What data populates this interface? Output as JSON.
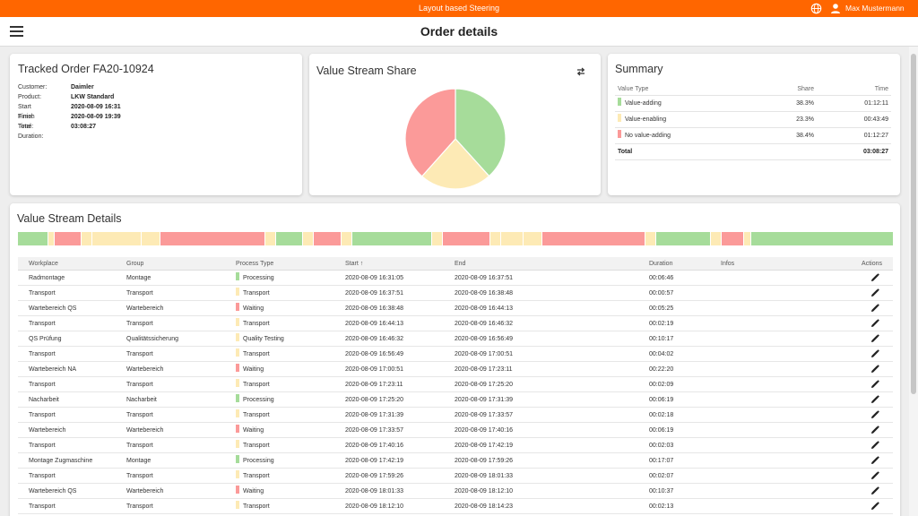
{
  "topbar": {
    "title": "Layout based Steering",
    "user_name": "Max Mustermann",
    "icons": [
      "globe-icon",
      "user-icon"
    ]
  },
  "header": {
    "title": "Order details",
    "menu_icon": "hamburger-menu-icon"
  },
  "colors": {
    "value_adding": "#a6dc9a",
    "value_enabling": "#fdeab5",
    "no_value_adding": "#fb9a99",
    "brand": "#ff6600"
  },
  "order": {
    "title": "Tracked Order FA20-10924",
    "fields": [
      {
        "label": "Customer:",
        "value": "Daimler"
      },
      {
        "label": "Product:",
        "value": "LKW Standard"
      },
      {
        "label": "Start Time:",
        "value": "2020-08-09 16:31"
      },
      {
        "label": "Finish Time:",
        "value": "2020-08-09 19:39"
      },
      {
        "label": "Total Duration:",
        "value": "03:08:27"
      }
    ]
  },
  "pie": {
    "title": "Value Stream Share",
    "refresh_icon": "swap-icon",
    "chart_data": {
      "type": "pie",
      "labels": [
        "Value-adding",
        "Value-enabling",
        "No value-adding"
      ],
      "values": [
        38.3,
        23.3,
        38.4
      ]
    }
  },
  "summary": {
    "title": "Summary",
    "headers": {
      "type": "Value Type",
      "share": "Share",
      "time": "Time"
    },
    "rows": [
      {
        "type": "Value-adding",
        "share": "38.3%",
        "time": "01:12:11",
        "color": "#a6dc9a"
      },
      {
        "type": "Value-enabling",
        "share": "23.3%",
        "time": "00:43:49",
        "color": "#fdeab5"
      },
      {
        "type": "No value-adding",
        "share": "38.4%",
        "time": "01:12:27",
        "color": "#fb9a99"
      }
    ],
    "total": {
      "label": "Total",
      "time": "03:08:27"
    }
  },
  "details": {
    "title": "Value Stream Details",
    "timeline": [
      {
        "kind": "green",
        "weight": 3.0
      },
      {
        "kind": "yellow",
        "weight": 0.6
      },
      {
        "kind": "red",
        "weight": 2.6
      },
      {
        "kind": "yellow",
        "weight": 1.0
      },
      {
        "kind": "yellow",
        "weight": 5.0
      },
      {
        "kind": "yellow",
        "weight": 1.8
      },
      {
        "kind": "red",
        "weight": 10.6
      },
      {
        "kind": "yellow",
        "weight": 1.0
      },
      {
        "kind": "green",
        "weight": 2.7
      },
      {
        "kind": "yellow",
        "weight": 1.0
      },
      {
        "kind": "red",
        "weight": 2.8
      },
      {
        "kind": "yellow",
        "weight": 1.0
      },
      {
        "kind": "green",
        "weight": 8.0
      },
      {
        "kind": "yellow",
        "weight": 1.0
      },
      {
        "kind": "red",
        "weight": 4.8
      },
      {
        "kind": "yellow",
        "weight": 1.0
      },
      {
        "kind": "yellow",
        "weight": 2.2
      },
      {
        "kind": "yellow",
        "weight": 1.8
      },
      {
        "kind": "red",
        "weight": 10.5
      },
      {
        "kind": "yellow",
        "weight": 1.0
      },
      {
        "kind": "green",
        "weight": 5.5
      },
      {
        "kind": "yellow",
        "weight": 1.0
      },
      {
        "kind": "red",
        "weight": 2.2
      },
      {
        "kind": "yellow",
        "weight": 0.6
      },
      {
        "kind": "green",
        "weight": 14.5
      }
    ],
    "headers": {
      "workplace": "Workplace",
      "group": "Group",
      "process_type": "Process Type",
      "start": "Start ↑",
      "end": "End",
      "duration": "Duration",
      "infos": "Infos",
      "actions": "Actions"
    },
    "edit_icon": "pencil-icon",
    "rows": [
      {
        "workplace": "Radmontage",
        "group": "Montage",
        "ptype": "Processing",
        "kind": "green",
        "start": "2020-08-09 16:31:05",
        "end": "2020-08-09 16:37:51",
        "duration": "00:06:46"
      },
      {
        "workplace": "Transport",
        "group": "Transport",
        "ptype": "Transport",
        "kind": "yellow",
        "start": "2020-08-09 16:37:51",
        "end": "2020-08-09 16:38:48",
        "duration": "00:00:57"
      },
      {
        "workplace": "Wartebereich QS",
        "group": "Wartebereich",
        "ptype": "Waiting",
        "kind": "red",
        "start": "2020-08-09 16:38:48",
        "end": "2020-08-09 16:44:13",
        "duration": "00:05:25"
      },
      {
        "workplace": "Transport",
        "group": "Transport",
        "ptype": "Transport",
        "kind": "yellow",
        "start": "2020-08-09 16:44:13",
        "end": "2020-08-09 16:46:32",
        "duration": "00:02:19"
      },
      {
        "workplace": "QS Prüfung",
        "group": "Qualitätssicherung",
        "ptype": "Quality Testing",
        "kind": "yellow",
        "start": "2020-08-09 16:46:32",
        "end": "2020-08-09 16:56:49",
        "duration": "00:10:17"
      },
      {
        "workplace": "Transport",
        "group": "Transport",
        "ptype": "Transport",
        "kind": "yellow",
        "start": "2020-08-09 16:56:49",
        "end": "2020-08-09 17:00:51",
        "duration": "00:04:02"
      },
      {
        "workplace": "Wartebereich NA",
        "group": "Wartebereich",
        "ptype": "Waiting",
        "kind": "red",
        "start": "2020-08-09 17:00:51",
        "end": "2020-08-09 17:23:11",
        "duration": "00:22:20"
      },
      {
        "workplace": "Transport",
        "group": "Transport",
        "ptype": "Transport",
        "kind": "yellow",
        "start": "2020-08-09 17:23:11",
        "end": "2020-08-09 17:25:20",
        "duration": "00:02:09"
      },
      {
        "workplace": "Nacharbeit",
        "group": "Nacharbeit",
        "ptype": "Processing",
        "kind": "green",
        "start": "2020-08-09 17:25:20",
        "end": "2020-08-09 17:31:39",
        "duration": "00:06:19"
      },
      {
        "workplace": "Transport",
        "group": "Transport",
        "ptype": "Transport",
        "kind": "yellow",
        "start": "2020-08-09 17:31:39",
        "end": "2020-08-09 17:33:57",
        "duration": "00:02:18"
      },
      {
        "workplace": "Wartebereich",
        "group": "Wartebereich",
        "ptype": "Waiting",
        "kind": "red",
        "start": "2020-08-09 17:33:57",
        "end": "2020-08-09 17:40:16",
        "duration": "00:06:19"
      },
      {
        "workplace": "Transport",
        "group": "Transport",
        "ptype": "Transport",
        "kind": "yellow",
        "start": "2020-08-09 17:40:16",
        "end": "2020-08-09 17:42:19",
        "duration": "00:02:03"
      },
      {
        "workplace": "Montage Zugmaschine",
        "group": "Montage",
        "ptype": "Processing",
        "kind": "green",
        "start": "2020-08-09 17:42:19",
        "end": "2020-08-09 17:59:26",
        "duration": "00:17:07"
      },
      {
        "workplace": "Transport",
        "group": "Transport",
        "ptype": "Transport",
        "kind": "yellow",
        "start": "2020-08-09 17:59:26",
        "end": "2020-08-09 18:01:33",
        "duration": "00:02:07"
      },
      {
        "workplace": "Wartebereich QS",
        "group": "Wartebereich",
        "ptype": "Waiting",
        "kind": "red",
        "start": "2020-08-09 18:01:33",
        "end": "2020-08-09 18:12:10",
        "duration": "00:10:37"
      },
      {
        "workplace": "Transport",
        "group": "Transport",
        "ptype": "Transport",
        "kind": "yellow",
        "start": "2020-08-09 18:12:10",
        "end": "2020-08-09 18:14:23",
        "duration": "00:02:13"
      }
    ]
  }
}
